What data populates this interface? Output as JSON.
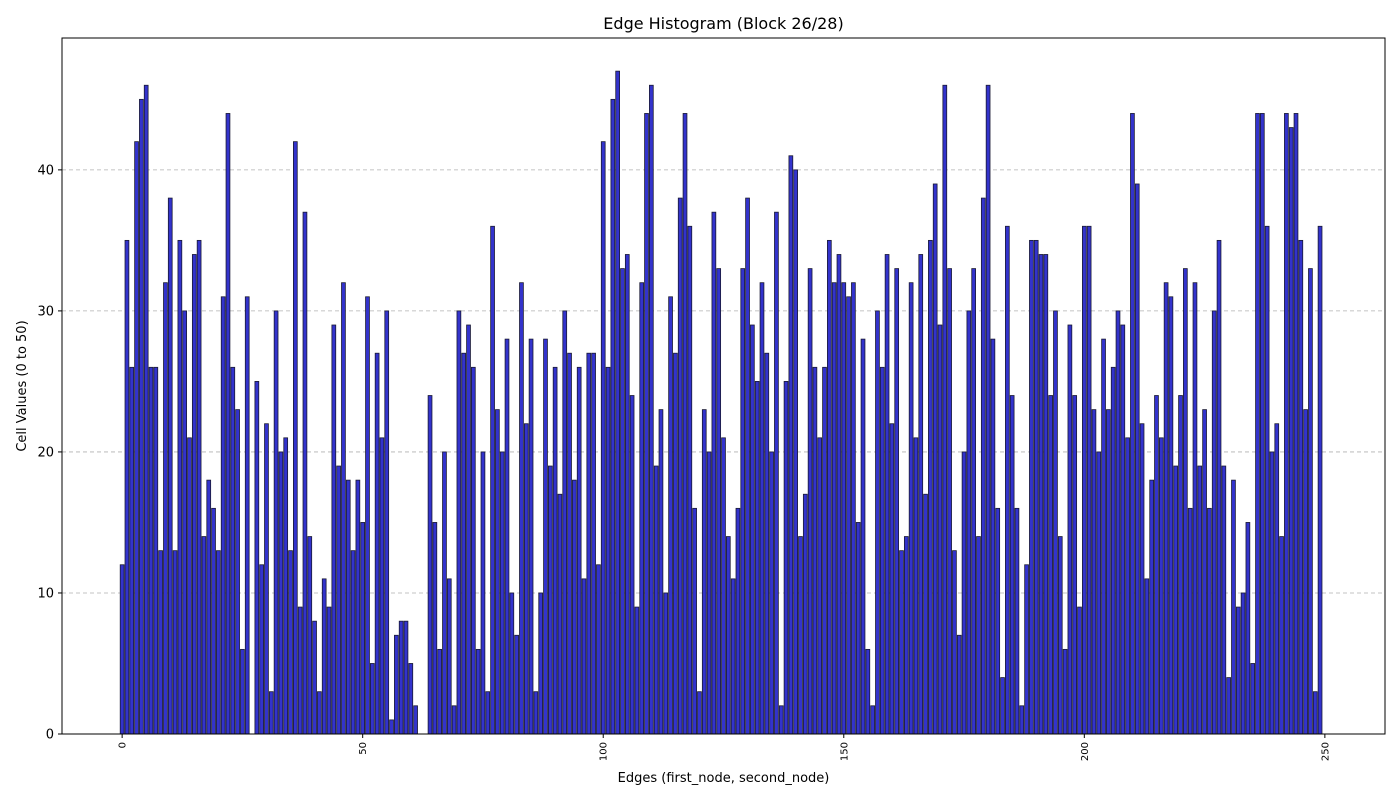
{
  "chart_data": {
    "type": "bar",
    "title": "Edge Histogram (Block 26/28)",
    "xlabel": "Edges (first_node, second_node)",
    "ylabel": "Cell Values (0 to 50)",
    "xlim": [
      -12.5,
      262.5
    ],
    "ylim": [
      0,
      49.35
    ],
    "xticks": [
      0,
      50,
      100,
      150,
      200,
      250
    ],
    "yticks": [
      0,
      10,
      20,
      30,
      40
    ],
    "grid": "y-dashed",
    "x": [
      0,
      1,
      2,
      3,
      4,
      5,
      6,
      7,
      8,
      9,
      10,
      11,
      12,
      13,
      14,
      15,
      16,
      17,
      18,
      19,
      20,
      21,
      22,
      23,
      24,
      25,
      26,
      27,
      28,
      29,
      30,
      31,
      32,
      33,
      34,
      35,
      36,
      37,
      38,
      39,
      40,
      41,
      42,
      43,
      44,
      45,
      46,
      47,
      48,
      49,
      50,
      51,
      52,
      53,
      54,
      55,
      56,
      57,
      58,
      59,
      60,
      61,
      62,
      63,
      64,
      65,
      66,
      67,
      68,
      69,
      70,
      71,
      72,
      73,
      74,
      75,
      76,
      77,
      78,
      79,
      80,
      81,
      82,
      83,
      84,
      85,
      86,
      87,
      88,
      89,
      90,
      91,
      92,
      93,
      94,
      95,
      96,
      97,
      98,
      99,
      100,
      101,
      102,
      103,
      104,
      105,
      106,
      107,
      108,
      109,
      110,
      111,
      112,
      113,
      114,
      115,
      116,
      117,
      118,
      119,
      120,
      121,
      122,
      123,
      124,
      125,
      126,
      127,
      128,
      129,
      130,
      131,
      132,
      133,
      134,
      135,
      136,
      137,
      138,
      139,
      140,
      141,
      142,
      143,
      144,
      145,
      146,
      147,
      148,
      149,
      150,
      151,
      152,
      153,
      154,
      155,
      156,
      157,
      158,
      159,
      160,
      161,
      162,
      163,
      164,
      165,
      166,
      167,
      168,
      169,
      170,
      171,
      172,
      173,
      174,
      175,
      176,
      177,
      178,
      179,
      180,
      181,
      182,
      183,
      184,
      185,
      186,
      187,
      188,
      189,
      190,
      191,
      192,
      193,
      194,
      195,
      196,
      197,
      198,
      199,
      200,
      201,
      202,
      203,
      204,
      205,
      206,
      207,
      208,
      209,
      210,
      211,
      212,
      213,
      214,
      215,
      216,
      217,
      218,
      219,
      220,
      221,
      222,
      223,
      224,
      225,
      226,
      227,
      228,
      229,
      230,
      231,
      232,
      233,
      234,
      235,
      236,
      237,
      238,
      239,
      240,
      241,
      242,
      243,
      244,
      245,
      246,
      247,
      248,
      249
    ],
    "values": [
      12,
      35,
      26,
      42,
      45,
      46,
      26,
      26,
      13,
      32,
      38,
      13,
      35,
      30,
      21,
      34,
      35,
      14,
      18,
      16,
      13,
      31,
      44,
      26,
      23,
      6,
      31,
      0,
      25,
      12,
      22,
      3,
      30,
      20,
      21,
      13,
      42,
      9,
      37,
      14,
      8,
      3,
      11,
      9,
      29,
      19,
      32,
      18,
      13,
      18,
      15,
      31,
      5,
      27,
      21,
      30,
      1,
      7,
      8,
      8,
      5,
      2,
      0,
      0,
      24,
      15,
      6,
      20,
      11,
      2,
      30,
      27,
      29,
      26,
      6,
      20,
      3,
      36,
      23,
      20,
      28,
      10,
      7,
      32,
      22,
      28,
      3,
      10,
      28,
      19,
      26,
      17,
      30,
      27,
      18,
      26,
      11,
      27,
      27,
      12,
      42,
      26,
      45,
      47,
      33,
      34,
      24,
      9,
      32,
      44,
      46,
      19,
      23,
      10,
      31,
      27,
      38,
      44,
      36,
      16,
      3,
      23,
      20,
      37,
      33,
      21,
      14,
      11,
      16,
      33,
      38,
      29,
      25,
      32,
      27,
      20,
      37,
      2,
      25,
      41,
      40,
      14,
      17,
      33,
      26,
      21,
      26,
      35,
      32,
      34,
      32,
      31,
      32,
      15,
      28,
      6,
      2,
      30,
      26,
      34,
      22,
      33,
      13,
      14,
      32,
      21,
      34,
      17,
      35,
      39,
      29,
      46,
      33,
      13,
      7,
      20,
      30,
      33,
      14,
      38,
      46,
      28,
      16,
      4,
      36,
      24,
      16,
      2,
      12,
      35,
      35,
      34,
      34,
      24,
      30,
      14,
      6,
      29,
      24,
      9,
      36,
      36,
      23,
      20,
      28,
      23,
      26,
      30,
      29,
      21,
      44,
      39,
      22,
      11,
      18,
      24,
      21,
      32,
      31,
      19,
      24,
      33,
      16,
      32,
      19,
      23,
      16,
      30,
      35,
      19,
      4,
      18,
      9,
      10,
      15,
      5,
      44,
      44,
      36,
      20,
      22,
      14,
      44,
      43,
      44,
      35,
      23,
      33,
      3,
      36
    ]
  }
}
